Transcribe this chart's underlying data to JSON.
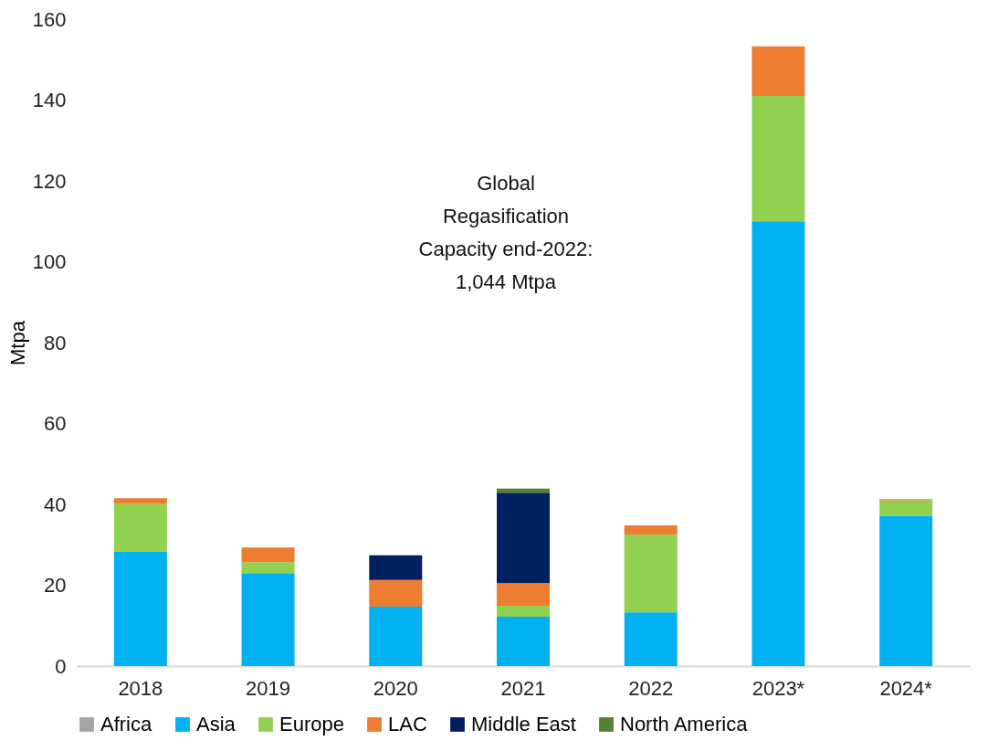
{
  "chart_data": {
    "type": "bar",
    "stacked": true,
    "ylabel": "Mtpa",
    "categories": [
      "2018",
      "2019",
      "2020",
      "2021",
      "2022",
      "2023*",
      "2024*"
    ],
    "series": [
      {
        "name": "Africa",
        "color": "#a5a5a5",
        "values": [
          null,
          null,
          null,
          null,
          null,
          null,
          null
        ]
      },
      {
        "name": "Asia",
        "color": "#00b0f0",
        "values": [
          28.3,
          22.8,
          14.7,
          12.2,
          13.3,
          110,
          37.2
        ]
      },
      {
        "name": "Europe",
        "color": "#92d050",
        "values": [
          11.8,
          2.9,
          null,
          2.7,
          19.2,
          31,
          3.8
        ]
      },
      {
        "name": "LAC",
        "color": "#ed7d31",
        "values": [
          1.4,
          3.6,
          6.6,
          5.6,
          2.3,
          12.3,
          0.3
        ]
      },
      {
        "name": "Middle East",
        "color": "#002060",
        "values": [
          null,
          null,
          6.1,
          22.4,
          null,
          null,
          null
        ]
      },
      {
        "name": "North America",
        "color": "#548235",
        "values": [
          null,
          null,
          null,
          1.0,
          null,
          null,
          null
        ]
      }
    ],
    "ylim": [
      0,
      160
    ],
    "yticks": [
      0,
      20,
      40,
      60,
      80,
      100,
      120,
      140,
      160
    ],
    "grid": false,
    "legend": "bottom",
    "annotations": [
      "Global\nRegasification\nCapacity end-2022:\n1,044 Mtpa"
    ]
  }
}
